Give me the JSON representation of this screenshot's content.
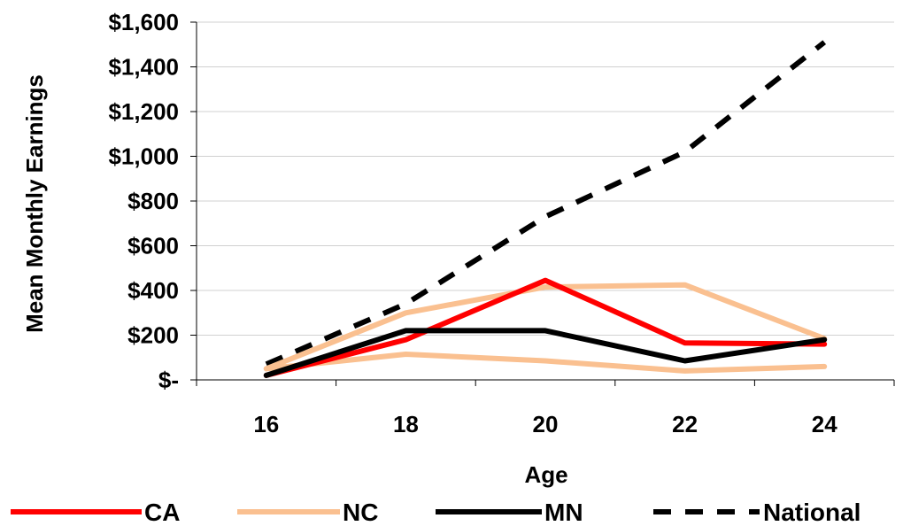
{
  "chart_data": {
    "type": "line",
    "xlabel": "Age",
    "ylabel": "Mean Monthly Earnings",
    "x": [
      16,
      18,
      20,
      22,
      24
    ],
    "xtick_labels": [
      "16",
      "18",
      "20",
      "22",
      "24"
    ],
    "ylim": [
      0,
      1600
    ],
    "yticks": [
      0,
      200,
      400,
      600,
      800,
      1000,
      1200,
      1400,
      1600
    ],
    "ytick_labels": [
      "$-",
      "$200",
      "$400",
      "$600",
      "$800",
      "$1,000",
      "$1,200",
      "$1,400",
      "$1,600"
    ],
    "grid": true,
    "legend_position": "bottom",
    "series": [
      {
        "name": "National",
        "color": "#000000",
        "dash": true,
        "values": [
          70,
          340,
          730,
          1020,
          1510
        ]
      },
      {
        "name": "NC",
        "color": "#FAC090",
        "values": [
          50,
          300,
          415,
          425,
          185
        ],
        "legend": true
      },
      {
        "name": "",
        "color": "#FAC090",
        "values": [
          50,
          115,
          85,
          40,
          60
        ],
        "legend": false
      },
      {
        "name": "CA",
        "color": "#FF0000",
        "values": [
          20,
          180,
          445,
          165,
          160
        ]
      },
      {
        "name": "MN",
        "color": "#000000",
        "values": [
          20,
          220,
          220,
          85,
          180
        ]
      }
    ],
    "legend": [
      {
        "name": "CA",
        "color": "#FF0000",
        "dash": false
      },
      {
        "name": "NC",
        "color": "#FAC090",
        "dash": false
      },
      {
        "name": "MN",
        "color": "#000000",
        "dash": false
      },
      {
        "name": "National",
        "color": "#000000",
        "dash": true
      }
    ]
  }
}
